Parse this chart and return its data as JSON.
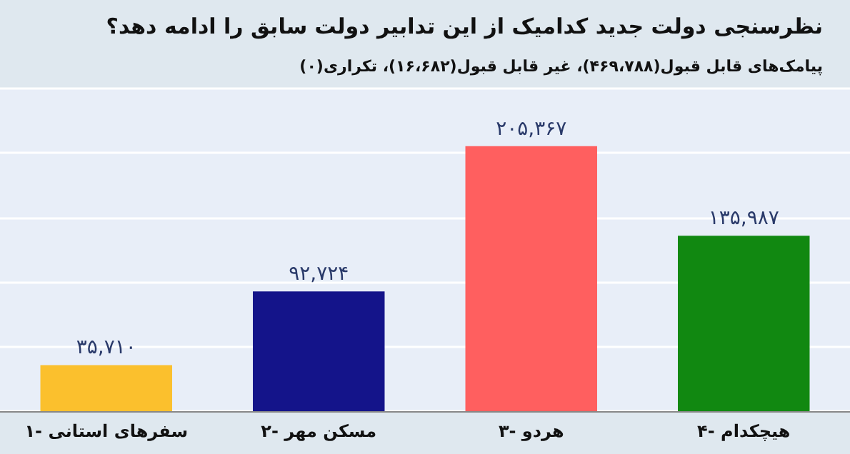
{
  "chart_data": {
    "type": "bar",
    "title": "نظرسنجی دولت جدید کدامیک از این تدابیر دولت سابق را ادامه دهد؟",
    "subtitle": "پیامک‌های قابل قبول(۴۶۹،۷۸۸)، غیر قابل قبول(۱۶،۶۸۲)، تکراری(۰)",
    "categories": [
      "۱- سفرهای استانی",
      "۲- مسکن مهر",
      "۳- هردو",
      "۴- هیچکدام"
    ],
    "values": [
      35710,
      92724,
      205367,
      135987
    ],
    "colors": [
      "#fbc02d",
      "#14148a",
      "#ff5f5f",
      "#118811"
    ],
    "value_labels": [
      "۳۵,۷۱۰",
      "۹۲,۷۲۴",
      "۲۰۵,۳۶۷",
      "۱۳۵,۹۸۷"
    ],
    "grid": "y"
  }
}
